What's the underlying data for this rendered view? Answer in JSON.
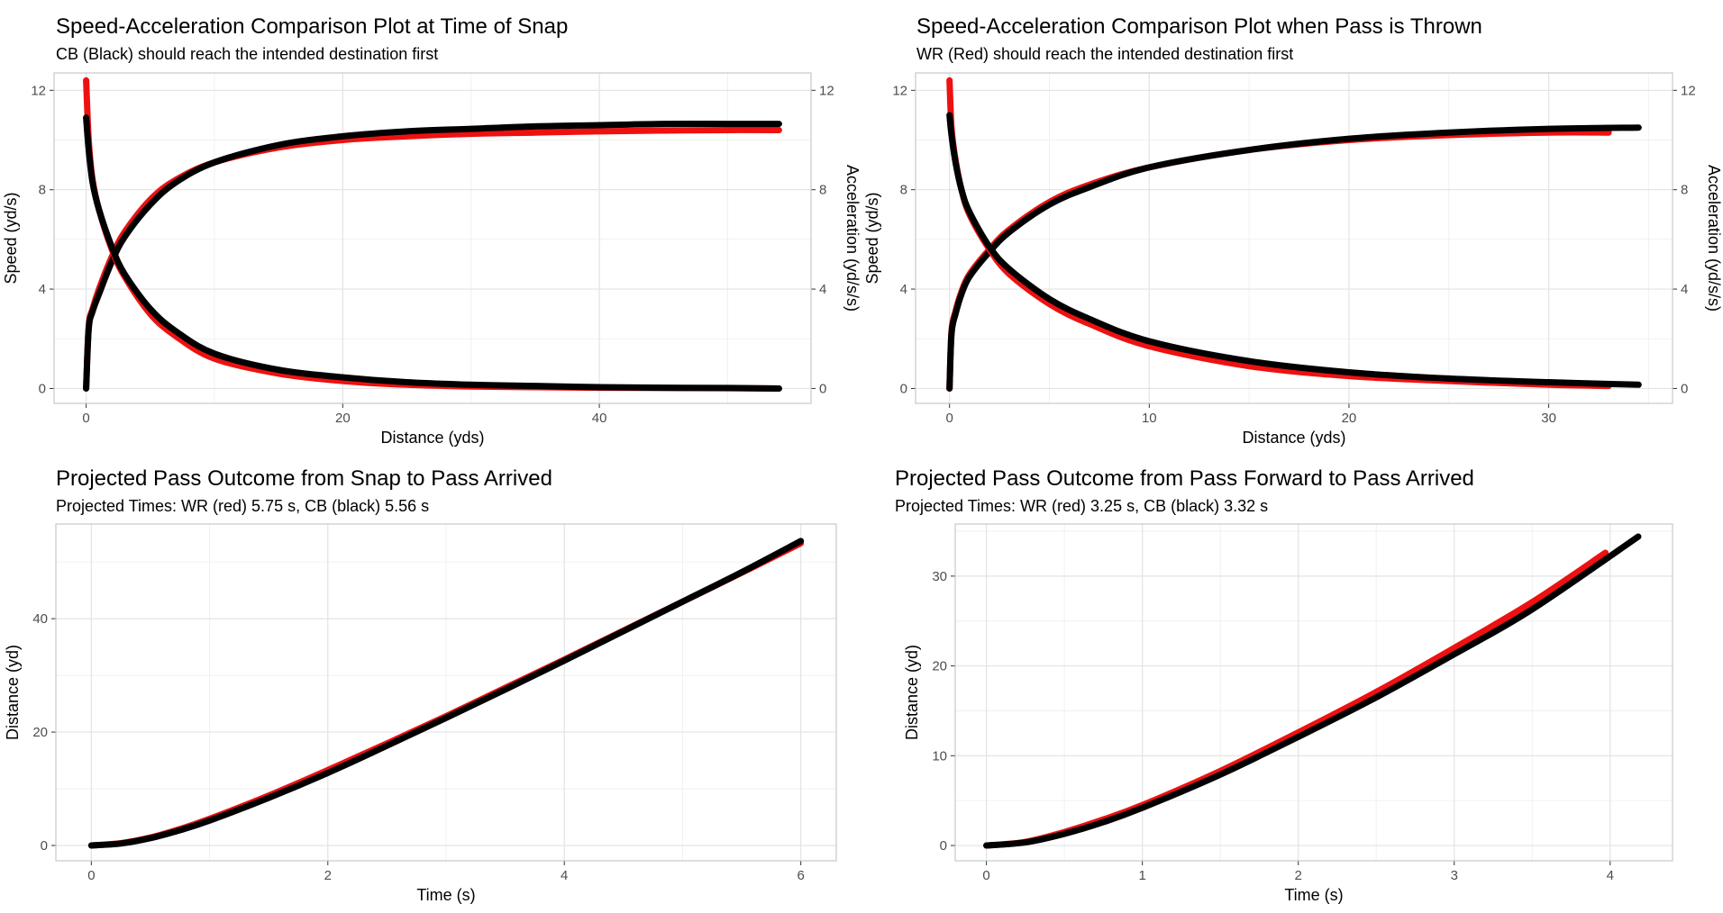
{
  "colors": {
    "wr": "#ee1111",
    "cb": "#000000",
    "grid": "#e3e3e3",
    "frame": "#c8c8c8",
    "tick_label": "#4d4d4d"
  },
  "chart_data": [
    {
      "type": "line",
      "title": "Speed-Acceleration Comparison Plot at Time of Snap",
      "subtitle": "CB (Black) should reach the intended destination first",
      "xlabel": "Distance (yds)",
      "ylabel": "Speed (yd/s)",
      "y2label": "Acceleration (yd/s/s)",
      "xlim": [
        -2.5,
        56.5
      ],
      "ylim": [
        -0.6,
        12.7
      ],
      "xticks": [
        0,
        20,
        40
      ],
      "yticks": [
        0,
        4,
        8,
        12
      ],
      "y2ticks": [
        0,
        4,
        8,
        12
      ],
      "grid": true,
      "series": [
        {
          "name": "WR speed",
          "color": "#ee1111",
          "x": [
            0,
            0.2,
            0.5,
            1,
            2,
            3,
            5,
            7,
            10,
            15,
            20,
            25,
            30,
            35,
            40,
            45,
            50,
            54
          ],
          "y": [
            0,
            2.5,
            3.2,
            4.0,
            5.3,
            6.3,
            7.6,
            8.4,
            9.1,
            9.7,
            10.0,
            10.15,
            10.25,
            10.3,
            10.35,
            10.38,
            10.4,
            10.4
          ]
        },
        {
          "name": "CB speed",
          "color": "#000000",
          "x": [
            0,
            0.2,
            0.5,
            1,
            2,
            3,
            5,
            7,
            10,
            15,
            20,
            25,
            30,
            35,
            40,
            45,
            50,
            54
          ],
          "y": [
            0,
            2.4,
            3.1,
            3.8,
            5.1,
            6.1,
            7.4,
            8.3,
            9.1,
            9.8,
            10.15,
            10.35,
            10.45,
            10.55,
            10.6,
            10.65,
            10.65,
            10.65
          ]
        },
        {
          "name": "WR acceleration",
          "color": "#ee1111",
          "x": [
            0,
            0.2,
            0.5,
            1,
            2,
            3,
            5,
            7,
            10,
            15,
            20,
            25,
            30,
            35,
            40,
            45,
            50,
            54
          ],
          "y": [
            12.4,
            10.0,
            8.4,
            7.2,
            5.6,
            4.5,
            3.0,
            2.1,
            1.2,
            0.6,
            0.3,
            0.15,
            0.08,
            0.05,
            0.03,
            0.02,
            0.01,
            0.0
          ]
        },
        {
          "name": "CB acceleration",
          "color": "#000000",
          "x": [
            0,
            0.2,
            0.5,
            1,
            2,
            3,
            5,
            7,
            10,
            15,
            20,
            25,
            30,
            35,
            40,
            45,
            50,
            54
          ],
          "y": [
            10.9,
            9.6,
            8.3,
            7.2,
            5.7,
            4.6,
            3.2,
            2.3,
            1.4,
            0.75,
            0.45,
            0.25,
            0.15,
            0.1,
            0.05,
            0.03,
            0.02,
            0.0
          ]
        }
      ]
    },
    {
      "type": "line",
      "title": "Speed-Acceleration Comparison Plot when Pass is Thrown",
      "subtitle": "WR (Red) should reach the intended destination first",
      "xlabel": "Distance (yds)",
      "ylabel": "Speed (yd/s)",
      "y2label": "Acceleration (yd/s/s)",
      "xlim": [
        -1.7,
        36.2
      ],
      "ylim": [
        -0.6,
        12.7
      ],
      "xticks": [
        0,
        10,
        20,
        30
      ],
      "yticks": [
        0,
        4,
        8,
        12
      ],
      "y2ticks": [
        0,
        4,
        8,
        12
      ],
      "grid": true,
      "series": [
        {
          "name": "WR speed",
          "color": "#ee1111",
          "x": [
            0,
            0.1,
            0.3,
            0.6,
            1,
            2,
            3,
            5,
            7,
            10,
            15,
            20,
            25,
            30,
            33
          ],
          "y": [
            0,
            2.3,
            3.1,
            3.9,
            4.6,
            5.6,
            6.4,
            7.5,
            8.2,
            8.9,
            9.6,
            10.0,
            10.2,
            10.3,
            10.3
          ]
        },
        {
          "name": "CB speed",
          "color": "#000000",
          "x": [
            0,
            0.1,
            0.3,
            0.6,
            1,
            2,
            3,
            5,
            7,
            10,
            15,
            20,
            25,
            30,
            34.5
          ],
          "y": [
            0,
            2.2,
            3.0,
            3.8,
            4.5,
            5.5,
            6.3,
            7.4,
            8.1,
            8.9,
            9.6,
            10.05,
            10.3,
            10.45,
            10.5
          ]
        },
        {
          "name": "WR acceleration",
          "color": "#ee1111",
          "x": [
            0,
            0.1,
            0.3,
            0.6,
            1,
            2,
            3,
            5,
            7,
            10,
            15,
            20,
            25,
            30,
            33
          ],
          "y": [
            12.4,
            10.5,
            9.2,
            8.0,
            7.0,
            5.6,
            4.6,
            3.4,
            2.6,
            1.7,
            0.9,
            0.5,
            0.3,
            0.15,
            0.1
          ]
        },
        {
          "name": "CB acceleration",
          "color": "#000000",
          "x": [
            0,
            0.1,
            0.3,
            0.6,
            1,
            2,
            3,
            5,
            7,
            10,
            15,
            20,
            25,
            30,
            34.5
          ],
          "y": [
            11.0,
            10.2,
            9.1,
            8.0,
            7.1,
            5.7,
            4.8,
            3.6,
            2.8,
            1.9,
            1.1,
            0.65,
            0.4,
            0.25,
            0.15
          ]
        }
      ]
    },
    {
      "type": "line",
      "title": "Projected Pass Outcome from Snap to Pass Arrived",
      "subtitle": "Projected Times: WR (red) 5.75 s, CB (black) 5.56 s",
      "xlabel": "Time (s)",
      "ylabel": "Distance (yd)",
      "xlim": [
        -0.3,
        6.3
      ],
      "ylim": [
        -2.7,
        56.7
      ],
      "xticks": [
        0,
        2,
        4,
        6
      ],
      "yticks": [
        0,
        20,
        40
      ],
      "grid": true,
      "series": [
        {
          "name": "WR",
          "color": "#ee1111",
          "x": [
            0,
            0.25,
            0.5,
            0.75,
            1,
            1.5,
            2,
            2.5,
            3,
            3.5,
            4,
            4.5,
            5,
            5.5,
            6
          ],
          "y": [
            0,
            0.4,
            1.4,
            2.9,
            4.7,
            8.8,
            13.3,
            18.0,
            22.8,
            27.8,
            32.8,
            37.9,
            43.0,
            48.1,
            53.3
          ]
        },
        {
          "name": "CB",
          "color": "#000000",
          "x": [
            0,
            0.25,
            0.5,
            0.75,
            1,
            1.5,
            2,
            2.5,
            3,
            3.5,
            4,
            4.5,
            5,
            5.5,
            6
          ],
          "y": [
            0,
            0.35,
            1.3,
            2.7,
            4.4,
            8.4,
            12.8,
            17.6,
            22.5,
            27.5,
            32.6,
            37.8,
            43.0,
            48.2,
            53.7
          ]
        }
      ]
    },
    {
      "type": "line",
      "title": "Projected Pass Outcome from Pass Forward to Pass Arrived",
      "subtitle": "Projected Times: WR (red) 3.25 s, CB (black) 3.32 s",
      "xlabel": "Time (s)",
      "ylabel": "Distance (yd)",
      "xlim": [
        -0.2,
        4.4
      ],
      "ylim": [
        -1.7,
        35.8
      ],
      "xticks": [
        0,
        1,
        2,
        3,
        4
      ],
      "yticks": [
        0,
        10,
        20,
        30
      ],
      "grid": true,
      "series": [
        {
          "name": "WR",
          "color": "#ee1111",
          "x": [
            0,
            0.25,
            0.5,
            0.75,
            1,
            1.5,
            2,
            2.5,
            3,
            3.5,
            3.97
          ],
          "y": [
            0,
            0.4,
            1.5,
            2.9,
            4.5,
            8.3,
            12.6,
            17.1,
            22.0,
            27.1,
            32.6
          ]
        },
        {
          "name": "CB",
          "color": "#000000",
          "x": [
            0,
            0.25,
            0.5,
            0.75,
            1,
            1.5,
            2,
            2.5,
            3,
            3.5,
            4.18
          ],
          "y": [
            0,
            0.35,
            1.3,
            2.6,
            4.2,
            7.9,
            12.1,
            16.5,
            21.3,
            26.3,
            34.4
          ]
        }
      ]
    }
  ]
}
